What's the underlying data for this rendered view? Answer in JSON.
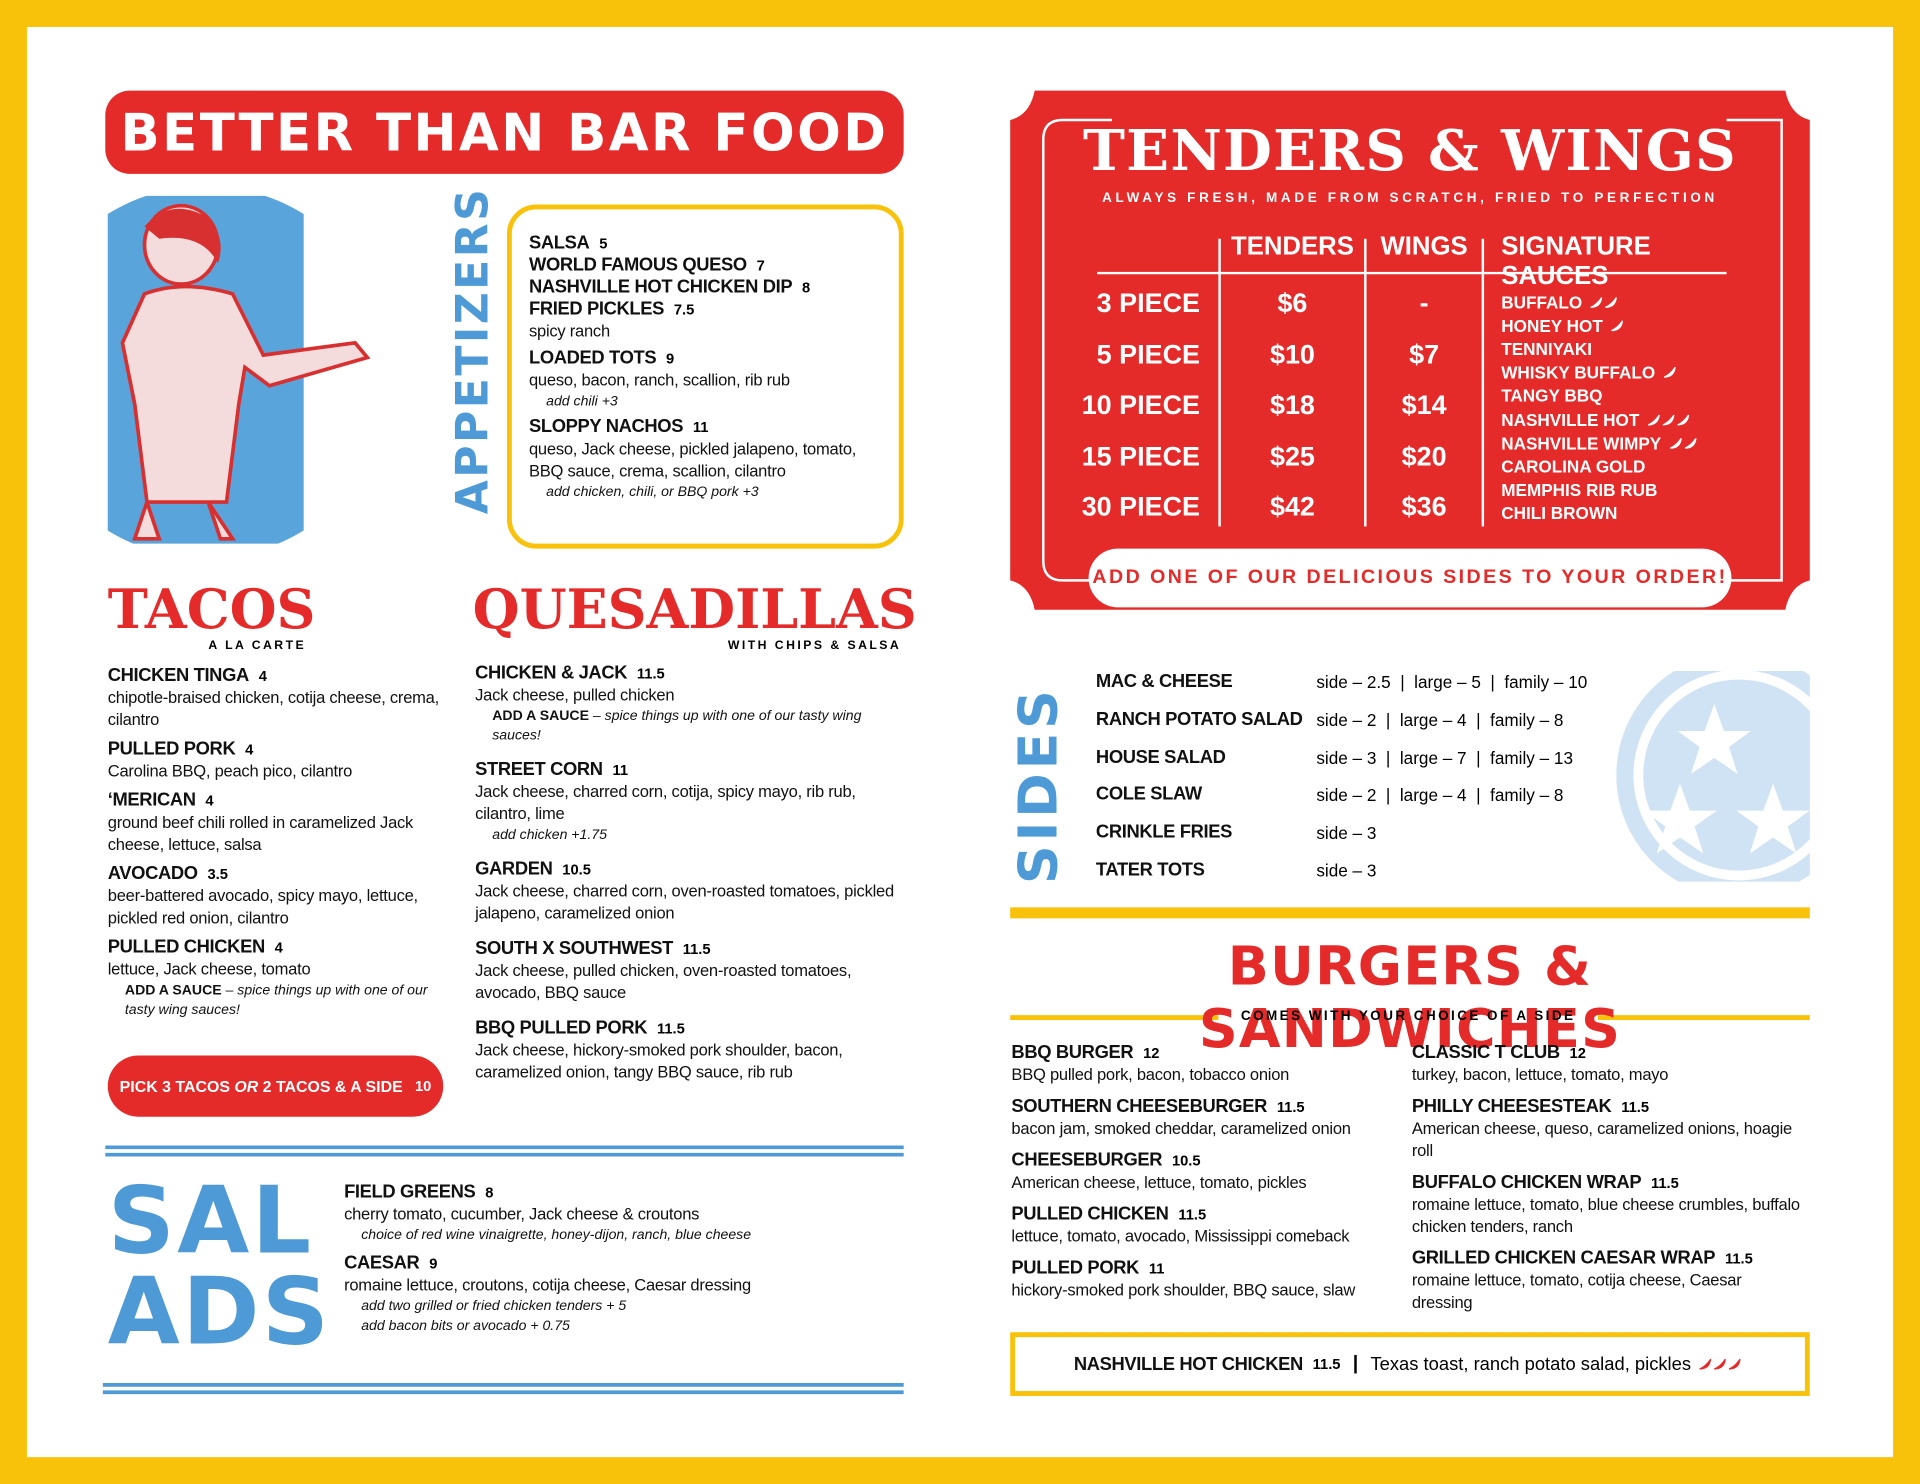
{
  "title": "BETTER THAN BAR FOOD",
  "appetizers": {
    "heading": "APPETIZERS",
    "items": [
      {
        "name": "SALSA",
        "price": "5"
      },
      {
        "name": "WORLD FAMOUS QUESO",
        "price": "7"
      },
      {
        "name": "NASHVILLE HOT CHICKEN DIP",
        "price": "8"
      },
      {
        "name": "FRIED PICKLES",
        "price": "7.5",
        "desc": "spicy ranch"
      },
      {
        "name": "LOADED TOTS",
        "price": "9",
        "desc": "queso, bacon, ranch, scallion, rib rub",
        "notes": [
          "add chili  +3"
        ]
      },
      {
        "name": "SLOPPY NACHOS",
        "price": "11",
        "desc": "queso, Jack cheese, pickled jalapeno, tomato, BBQ sauce, crema, scallion, cilantro",
        "notes": [
          "add chicken, chili, or BBQ pork  +3"
        ]
      }
    ]
  },
  "tacos": {
    "heading": "TACOS",
    "subheading": "A LA CARTE",
    "items": [
      {
        "name": "CHICKEN TINGA",
        "price": "4",
        "desc": "chipotle-braised chicken, cotija cheese, crema, cilantro"
      },
      {
        "name": "PULLED PORK",
        "price": "4",
        "desc": "Carolina BBQ, peach pico, cilantro"
      },
      {
        "name": "‘MERICAN",
        "price": "4",
        "desc": "ground beef chili rolled in caramelized Jack cheese, lettuce, salsa"
      },
      {
        "name": "AVOCADO",
        "price": "3.5",
        "desc": "beer-battered avocado, spicy mayo, lettuce, pickled red onion, cilantro"
      },
      {
        "name": "PULLED CHICKEN",
        "price": "4",
        "desc": "lettuce, Jack cheese, tomato",
        "notes": [
          {
            "label": "ADD A SAUCE",
            "text": " – spice things up with one of our tasty wing sauces!"
          }
        ]
      }
    ],
    "deal": {
      "a": "PICK 3 TACOS ",
      "b": "OR",
      "c": " 2 TACOS & A SIDE",
      "price": "10"
    }
  },
  "quesadillas": {
    "heading": "QUESADILLAS",
    "subheading": "WITH CHIPS & SALSA",
    "items": [
      {
        "name": "CHICKEN & JACK",
        "price": "11.5",
        "desc": "Jack cheese, pulled chicken",
        "notes": [
          {
            "label": "ADD A SAUCE",
            "text": " – spice things up with one of our tasty wing sauces!"
          }
        ]
      },
      {
        "name": "STREET CORN",
        "price": "11",
        "desc": "Jack cheese, charred corn, cotija, spicy mayo, rib rub, cilantro, lime",
        "notes": [
          "add chicken  +1.75"
        ]
      },
      {
        "name": "GARDEN",
        "price": "10.5",
        "desc": "Jack cheese, charred corn, oven-roasted tomatoes, pickled jalapeno, caramelized onion"
      },
      {
        "name": "SOUTH X SOUTHWEST",
        "price": "11.5",
        "desc": "Jack cheese, pulled chicken, oven-roasted tomatoes, avocado, BBQ sauce"
      },
      {
        "name": "BBQ PULLED PORK",
        "price": "11.5",
        "desc": "Jack cheese, hickory-smoked pork shoulder, bacon, caramelized onion, tangy BBQ sauce, rib rub"
      }
    ]
  },
  "salads": {
    "heading": [
      "SAL",
      "ADS"
    ],
    "items": [
      {
        "name": "FIELD GREENS",
        "price": "8",
        "desc": "cherry tomato, cucumber, Jack cheese & croutons",
        "notes": [
          "choice of red wine vinaigrette, honey-dijon, ranch, blue cheese"
        ]
      },
      {
        "name": "CAESAR",
        "price": "9",
        "desc": "romaine lettuce, croutons, cotija cheese, Caesar dressing",
        "notes": [
          "add two grilled or fried chicken tenders  + 5",
          "add bacon bits or avocado  + 0.75"
        ]
      }
    ]
  },
  "tenders": {
    "heading": "TENDERS & WINGS",
    "subheading": "ALWAYS FRESH, MADE FROM SCRATCH, FRIED TO PERFECTION",
    "columns": [
      "TENDERS",
      "WINGS",
      "SIGNATURE SAUCES"
    ],
    "rows": [
      {
        "size": "3 PIECE",
        "tenders": "$6",
        "wings": "-"
      },
      {
        "size": "5 PIECE",
        "tenders": "$10",
        "wings": "$7"
      },
      {
        "size": "10 PIECE",
        "tenders": "$18",
        "wings": "$14"
      },
      {
        "size": "15 PIECE",
        "tenders": "$25",
        "wings": "$20"
      },
      {
        "size": "30 PIECE",
        "tenders": "$42",
        "wings": "$36"
      }
    ],
    "sauces": [
      {
        "name": "BUFFALO",
        "heat": 2
      },
      {
        "name": "HONEY HOT",
        "heat": 1
      },
      {
        "name": "TENNIYAKI",
        "heat": 0
      },
      {
        "name": "WHISKY BUFFALO",
        "heat": 1
      },
      {
        "name": "TANGY BBQ",
        "heat": 0
      },
      {
        "name": "NASHVILLE HOT",
        "heat": 3
      },
      {
        "name": "NASHVILLE WIMPY",
        "heat": 2
      },
      {
        "name": "CAROLINA GOLD",
        "heat": 0
      },
      {
        "name": "MEMPHIS RIB RUB",
        "heat": 0
      },
      {
        "name": "CHILI BROWN",
        "heat": 0
      }
    ],
    "footer": "ADD ONE OF OUR DELICIOUS SIDES TO YOUR ORDER!"
  },
  "sides": {
    "heading": "SIDES",
    "items": [
      {
        "name": "MAC & CHEESE",
        "price": "side – 2.5  |  large – 5  |  family – 10"
      },
      {
        "name": "RANCH POTATO SALAD",
        "price": "side – 2  |  large – 4  |  family – 8"
      },
      {
        "name": "HOUSE SALAD",
        "price": "side – 3  |  large – 7  |  family – 13"
      },
      {
        "name": "COLE SLAW",
        "price": "side – 2  |  large – 4  |  family – 8"
      },
      {
        "name": "CRINKLE FRIES",
        "price": "side – 3"
      },
      {
        "name": "TATER TOTS",
        "price": "side – 3"
      }
    ]
  },
  "burgers": {
    "heading": "BURGERS & SANDWICHES",
    "subheading": "COMES WITH YOUR CHOICE OF A SIDE",
    "left": [
      {
        "name": "BBQ BURGER",
        "price": "12",
        "desc": "BBQ pulled pork, bacon, tobacco onion"
      },
      {
        "name": "SOUTHERN CHEESEBURGER",
        "price": "11.5",
        "desc": "bacon jam, smoked cheddar, caramelized onion"
      },
      {
        "name": "CHEESEBURGER",
        "price": "10.5",
        "desc": "American cheese, lettuce, tomato, pickles"
      },
      {
        "name": "PULLED CHICKEN",
        "price": "11.5",
        "desc": "lettuce, tomato, avocado, Mississippi comeback"
      },
      {
        "name": "PULLED PORK",
        "price": "11",
        "desc": "hickory-smoked pork shoulder, BBQ sauce, slaw"
      }
    ],
    "right": [
      {
        "name": "CLASSIC T CLUB",
        "price": "12",
        "desc": "turkey, bacon, lettuce, tomato, mayo"
      },
      {
        "name": "PHILLY CHEESESTEAK",
        "price": "11.5",
        "desc": "American cheese, queso, caramelized onions, hoagie roll"
      },
      {
        "name": "BUFFALO CHICKEN WRAP",
        "price": "11.5",
        "desc": "romaine lettuce, tomato, blue cheese crumbles, buffalo chicken tenders, ranch"
      },
      {
        "name": "GRILLED CHICKEN CAESAR WRAP",
        "price": "11.5",
        "desc": "romaine lettuce, tomato, cotija cheese, Caesar dressing"
      }
    ],
    "feature": {
      "name": "NASHVILLE HOT CHICKEN",
      "price": "11.5",
      "desc": "Texas toast, ranch potato salad, pickles",
      "heat": 3
    }
  }
}
